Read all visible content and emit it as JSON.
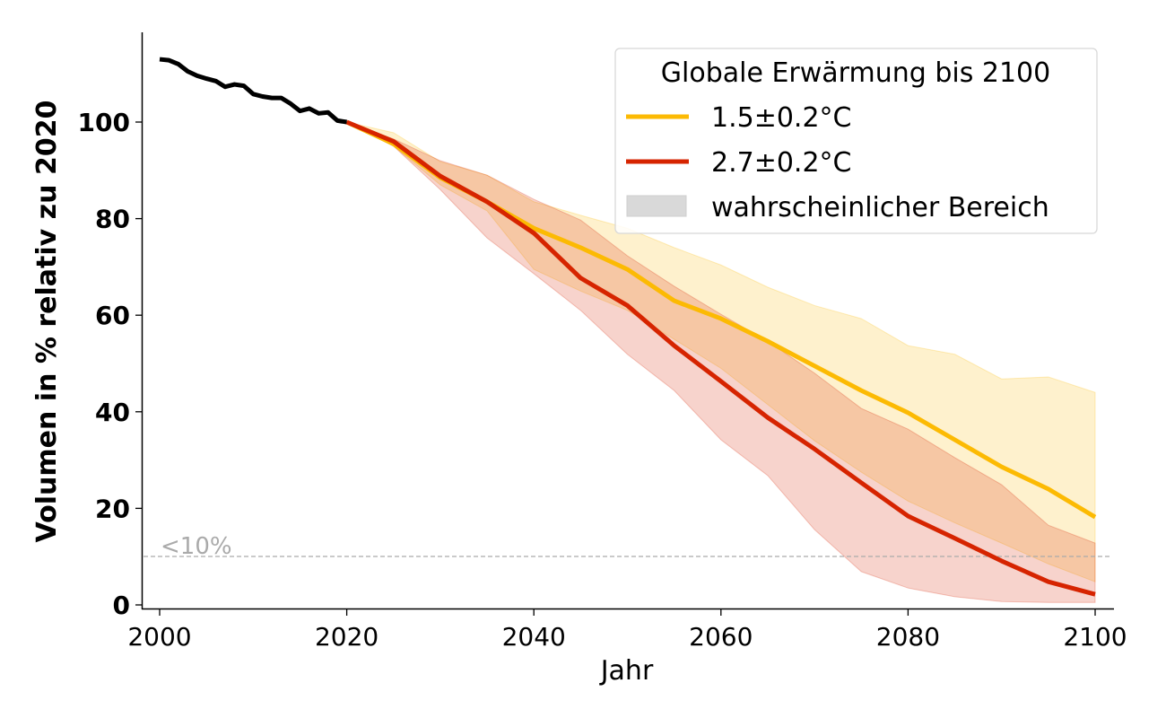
{
  "chart_data": {
    "type": "line",
    "xlabel": "Jahr",
    "ylabel": "Volumen in % relativ zu 2020",
    "xlim": [
      1998,
      2102
    ],
    "ylim": [
      -1,
      118
    ],
    "xticks": [
      "2000",
      "2020",
      "2040",
      "2060",
      "2080",
      "2100"
    ],
    "yticks": [
      "0",
      "20",
      "40",
      "60",
      "80",
      "100"
    ],
    "grid": false,
    "legend": {
      "title": "Globale Erwärmung bis 2100",
      "placement": "top-right",
      "entries": [
        "1.5±0.2°C",
        "2.7±0.2°C",
        "wahrscheinlicher Bereich"
      ]
    },
    "reference_line": {
      "y": 10,
      "label": "<10%",
      "style": "dashed",
      "color": "#aaaaaa"
    },
    "historical": {
      "color": "#000000",
      "x": [
        2000,
        2001,
        2002,
        2003,
        2004,
        2005,
        2006,
        2007,
        2008,
        2009,
        2010,
        2011,
        2012,
        2013,
        2014,
        2015,
        2016,
        2017,
        2018,
        2019,
        2020
      ],
      "y": [
        113,
        112.8,
        112,
        110.5,
        109.6,
        109,
        108.5,
        107.3,
        107.8,
        107.5,
        105.8,
        105.3,
        105,
        105,
        103.8,
        102.3,
        102.8,
        101.8,
        102,
        100.3,
        100
      ]
    },
    "x": [
      2020,
      2025,
      2030,
      2035,
      2040,
      2045,
      2050,
      2055,
      2060,
      2065,
      2070,
      2075,
      2080,
      2085,
      2090,
      2095,
      2100
    ],
    "series": [
      {
        "name": "1.5±0.2°C",
        "color": "#fcba03",
        "fill": "#fff0c9",
        "values": [
          100,
          95.5,
          88.5,
          83.5,
          78,
          74,
          69.5,
          63,
          59.3,
          54.6,
          49.5,
          44.4,
          39.8,
          34.2,
          28.6,
          24,
          18.2
        ],
        "lower": [
          100,
          95,
          87,
          81.6,
          69.5,
          65,
          61,
          55,
          49,
          41.5,
          34,
          27.5,
          21.5,
          17,
          12.8,
          8.5,
          4.8
        ],
        "upper": [
          100,
          97.8,
          91.8,
          89,
          83.5,
          80.7,
          78,
          74,
          70.4,
          65.8,
          62,
          59.3,
          53.7,
          51.9,
          46.8,
          47.2,
          44
        ]
      },
      {
        "name": "2.7±0.2°C",
        "color": "#d62400",
        "fill": "#f5d2cf",
        "values": [
          100,
          96,
          88.8,
          83.5,
          77,
          67.7,
          62,
          53.7,
          46.3,
          38.8,
          32.3,
          25.3,
          18.4,
          13.8,
          9.1,
          4.8,
          2.2
        ],
        "lower": [
          100,
          95,
          86,
          76,
          68.6,
          61,
          51.9,
          44.4,
          34.2,
          26.8,
          15.6,
          6.9,
          3.5,
          1.7,
          0.7,
          0.5,
          0.5
        ],
        "upper": [
          100,
          96.5,
          92,
          89,
          84,
          79.7,
          72.3,
          66,
          60.2,
          54.6,
          48,
          40.7,
          36.4,
          30.5,
          24.9,
          16.5,
          12.8
        ]
      }
    ]
  }
}
